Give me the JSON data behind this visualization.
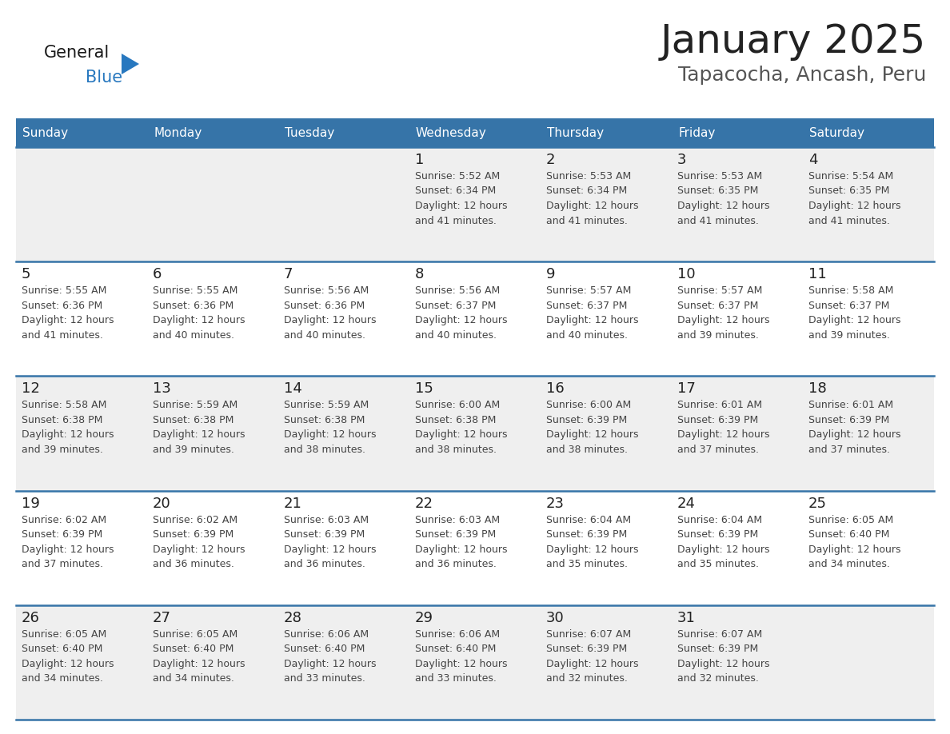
{
  "title": "January 2025",
  "subtitle": "Tapacocha, Ancash, Peru",
  "header_bg_color": "#3674a8",
  "header_text_color": "#FFFFFF",
  "days_of_week": [
    "Sunday",
    "Monday",
    "Tuesday",
    "Wednesday",
    "Thursday",
    "Friday",
    "Saturday"
  ],
  "row_bg_even": "#EFEFEF",
  "row_bg_odd": "#FFFFFF",
  "divider_color": "#3674a8",
  "cell_text_color": "#444444",
  "day_num_color": "#222222",
  "title_color": "#222222",
  "subtitle_color": "#555555",
  "logo_general_color": "#1a1a1a",
  "logo_blue_color": "#2878bf",
  "logo_triangle_color": "#2878bf",
  "calendar_data": [
    [
      null,
      null,
      null,
      {
        "day": 1,
        "sunrise": "5:52 AM",
        "sunset": "6:34 PM",
        "daylight_hours": 12,
        "daylight_minutes": 41
      },
      {
        "day": 2,
        "sunrise": "5:53 AM",
        "sunset": "6:34 PM",
        "daylight_hours": 12,
        "daylight_minutes": 41
      },
      {
        "day": 3,
        "sunrise": "5:53 AM",
        "sunset": "6:35 PM",
        "daylight_hours": 12,
        "daylight_minutes": 41
      },
      {
        "day": 4,
        "sunrise": "5:54 AM",
        "sunset": "6:35 PM",
        "daylight_hours": 12,
        "daylight_minutes": 41
      }
    ],
    [
      {
        "day": 5,
        "sunrise": "5:55 AM",
        "sunset": "6:36 PM",
        "daylight_hours": 12,
        "daylight_minutes": 41
      },
      {
        "day": 6,
        "sunrise": "5:55 AM",
        "sunset": "6:36 PM",
        "daylight_hours": 12,
        "daylight_minutes": 40
      },
      {
        "day": 7,
        "sunrise": "5:56 AM",
        "sunset": "6:36 PM",
        "daylight_hours": 12,
        "daylight_minutes": 40
      },
      {
        "day": 8,
        "sunrise": "5:56 AM",
        "sunset": "6:37 PM",
        "daylight_hours": 12,
        "daylight_minutes": 40
      },
      {
        "day": 9,
        "sunrise": "5:57 AM",
        "sunset": "6:37 PM",
        "daylight_hours": 12,
        "daylight_minutes": 40
      },
      {
        "day": 10,
        "sunrise": "5:57 AM",
        "sunset": "6:37 PM",
        "daylight_hours": 12,
        "daylight_minutes": 39
      },
      {
        "day": 11,
        "sunrise": "5:58 AM",
        "sunset": "6:37 PM",
        "daylight_hours": 12,
        "daylight_minutes": 39
      }
    ],
    [
      {
        "day": 12,
        "sunrise": "5:58 AM",
        "sunset": "6:38 PM",
        "daylight_hours": 12,
        "daylight_minutes": 39
      },
      {
        "day": 13,
        "sunrise": "5:59 AM",
        "sunset": "6:38 PM",
        "daylight_hours": 12,
        "daylight_minutes": 39
      },
      {
        "day": 14,
        "sunrise": "5:59 AM",
        "sunset": "6:38 PM",
        "daylight_hours": 12,
        "daylight_minutes": 38
      },
      {
        "day": 15,
        "sunrise": "6:00 AM",
        "sunset": "6:38 PM",
        "daylight_hours": 12,
        "daylight_minutes": 38
      },
      {
        "day": 16,
        "sunrise": "6:00 AM",
        "sunset": "6:39 PM",
        "daylight_hours": 12,
        "daylight_minutes": 38
      },
      {
        "day": 17,
        "sunrise": "6:01 AM",
        "sunset": "6:39 PM",
        "daylight_hours": 12,
        "daylight_minutes": 37
      },
      {
        "day": 18,
        "sunrise": "6:01 AM",
        "sunset": "6:39 PM",
        "daylight_hours": 12,
        "daylight_minutes": 37
      }
    ],
    [
      {
        "day": 19,
        "sunrise": "6:02 AM",
        "sunset": "6:39 PM",
        "daylight_hours": 12,
        "daylight_minutes": 37
      },
      {
        "day": 20,
        "sunrise": "6:02 AM",
        "sunset": "6:39 PM",
        "daylight_hours": 12,
        "daylight_minutes": 36
      },
      {
        "day": 21,
        "sunrise": "6:03 AM",
        "sunset": "6:39 PM",
        "daylight_hours": 12,
        "daylight_minutes": 36
      },
      {
        "day": 22,
        "sunrise": "6:03 AM",
        "sunset": "6:39 PM",
        "daylight_hours": 12,
        "daylight_minutes": 36
      },
      {
        "day": 23,
        "sunrise": "6:04 AM",
        "sunset": "6:39 PM",
        "daylight_hours": 12,
        "daylight_minutes": 35
      },
      {
        "day": 24,
        "sunrise": "6:04 AM",
        "sunset": "6:39 PM",
        "daylight_hours": 12,
        "daylight_minutes": 35
      },
      {
        "day": 25,
        "sunrise": "6:05 AM",
        "sunset": "6:40 PM",
        "daylight_hours": 12,
        "daylight_minutes": 34
      }
    ],
    [
      {
        "day": 26,
        "sunrise": "6:05 AM",
        "sunset": "6:40 PM",
        "daylight_hours": 12,
        "daylight_minutes": 34
      },
      {
        "day": 27,
        "sunrise": "6:05 AM",
        "sunset": "6:40 PM",
        "daylight_hours": 12,
        "daylight_minutes": 34
      },
      {
        "day": 28,
        "sunrise": "6:06 AM",
        "sunset": "6:40 PM",
        "daylight_hours": 12,
        "daylight_minutes": 33
      },
      {
        "day": 29,
        "sunrise": "6:06 AM",
        "sunset": "6:40 PM",
        "daylight_hours": 12,
        "daylight_minutes": 33
      },
      {
        "day": 30,
        "sunrise": "6:07 AM",
        "sunset": "6:39 PM",
        "daylight_hours": 12,
        "daylight_minutes": 32
      },
      {
        "day": 31,
        "sunrise": "6:07 AM",
        "sunset": "6:39 PM",
        "daylight_hours": 12,
        "daylight_minutes": 32
      },
      null
    ]
  ]
}
